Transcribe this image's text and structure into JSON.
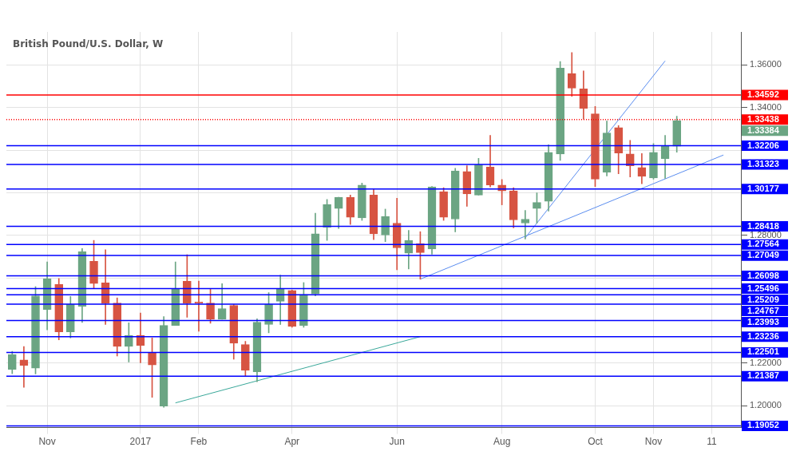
{
  "chart_data": {
    "type": "candlestick",
    "title": "British Pound/U.S. Dollar, W",
    "categories": [
      null,
      null,
      null,
      "Nov",
      null,
      null,
      null,
      null,
      null,
      null,
      null,
      "2017",
      null,
      null,
      null,
      null,
      "Feb",
      null,
      null,
      null,
      null,
      null,
      null,
      null,
      "Apr",
      null,
      null,
      null,
      null,
      null,
      null,
      null,
      null,
      "Jun",
      null,
      null,
      null,
      null,
      null,
      null,
      null,
      null,
      "Aug",
      null,
      null,
      null,
      null,
      null,
      null,
      null,
      "Oct",
      null,
      null,
      null,
      null,
      "Nov",
      null,
      null,
      null,
      null,
      "11",
      null,
      null
    ],
    "ohlc": [
      [
        1.217,
        1.2255,
        1.215,
        1.224
      ],
      [
        1.2215,
        1.2278,
        1.2086,
        1.2189
      ],
      [
        1.2176,
        1.2559,
        1.2149,
        1.2516
      ],
      [
        1.2452,
        1.2675,
        1.2356,
        1.2595
      ],
      [
        1.2569,
        1.2597,
        1.2309,
        1.2347
      ],
      [
        1.2347,
        1.2513,
        1.2318,
        1.2475
      ],
      [
        1.2466,
        1.2738,
        1.2391,
        1.2723
      ],
      [
        1.2678,
        1.2776,
        1.2552,
        1.2573
      ],
      [
        1.2577,
        1.2732,
        1.2381,
        1.2481
      ],
      [
        1.2482,
        1.2506,
        1.2233,
        1.2278
      ],
      [
        1.2278,
        1.2389,
        1.2205,
        1.233
      ],
      [
        1.233,
        1.2435,
        1.2201,
        1.2283
      ],
      [
        1.2249,
        1.2318,
        1.2039,
        1.2191
      ],
      [
        1.1998,
        1.2418,
        1.1992,
        1.2377
      ],
      [
        1.2377,
        1.2675,
        1.2377,
        1.2547
      ],
      [
        1.2584,
        1.2709,
        1.2415,
        1.2481
      ],
      [
        1.2487,
        1.2585,
        1.2349,
        1.2481
      ],
      [
        1.2482,
        1.2547,
        1.2387,
        1.2406
      ],
      [
        1.2406,
        1.2573,
        1.2406,
        1.2456
      ],
      [
        1.2471,
        1.2475,
        1.2218,
        1.2293
      ],
      [
        1.2287,
        1.2302,
        1.2138,
        1.2166
      ],
      [
        1.2159,
        1.2408,
        1.2112,
        1.2392
      ],
      [
        1.2381,
        1.2531,
        1.2342,
        1.2475
      ],
      [
        1.249,
        1.2613,
        1.2381,
        1.2547
      ],
      [
        1.2541,
        1.2543,
        1.2368,
        1.2372
      ],
      [
        1.2377,
        1.2578,
        1.2368,
        1.2522
      ],
      [
        1.2525,
        1.2904,
        1.2515,
        1.2807
      ],
      [
        1.2838,
        1.2968,
        1.2776,
        1.2945
      ],
      [
        1.2926,
        1.2979,
        1.2832,
        1.2979
      ],
      [
        1.2979,
        1.2989,
        1.2851,
        1.2885
      ],
      [
        1.2882,
        1.3045,
        1.287,
        1.3036
      ],
      [
        1.2989,
        1.3018,
        1.278,
        1.2807
      ],
      [
        1.2801,
        1.2923,
        1.277,
        1.2889
      ],
      [
        1.2857,
        1.2974,
        1.2638,
        1.2741
      ],
      [
        1.2716,
        1.2823,
        1.2642,
        1.2776
      ],
      [
        1.2761,
        1.2817,
        1.2594,
        1.2719
      ],
      [
        1.2736,
        1.3029,
        1.2711,
        1.3027
      ],
      [
        1.3005,
        1.3024,
        1.287,
        1.2885
      ],
      [
        1.2876,
        1.3115,
        1.2816,
        1.3102
      ],
      [
        1.31,
        1.3127,
        1.2936,
        1.2994
      ],
      [
        1.2989,
        1.3161,
        1.2989,
        1.3131
      ],
      [
        1.3121,
        1.3269,
        1.3027,
        1.3036
      ],
      [
        1.3036,
        1.3062,
        1.2943,
        1.3008
      ],
      [
        1.3009,
        1.3024,
        1.2835,
        1.2872
      ],
      [
        1.2857,
        1.2917,
        1.2782,
        1.2876
      ],
      [
        1.2926,
        1.2999,
        1.2857,
        1.2954
      ],
      [
        1.296,
        1.3225,
        1.2914,
        1.319
      ],
      [
        1.3182,
        1.3616,
        1.3152,
        1.3585
      ],
      [
        1.356,
        1.3658,
        1.3453,
        1.3491
      ],
      [
        1.3488,
        1.3572,
        1.3346,
        1.3395
      ],
      [
        1.337,
        1.3405,
        1.3029,
        1.3064
      ],
      [
        1.3096,
        1.3337,
        1.3079,
        1.328
      ],
      [
        1.3306,
        1.3315,
        1.3089,
        1.3186
      ],
      [
        1.3182,
        1.3246,
        1.3074,
        1.3126
      ],
      [
        1.3118,
        1.3184,
        1.3042,
        1.3077
      ],
      [
        1.3069,
        1.3231,
        1.3064,
        1.319
      ],
      [
        1.316,
        1.3269,
        1.3067,
        1.3218
      ],
      [
        1.3218,
        1.3359,
        1.319,
        1.33384
      ],
      null,
      null,
      null,
      null,
      null
    ],
    "colors": [
      "#6ba583",
      "#d75442",
      "#6ba583",
      "#6ba583",
      "#d75442",
      "#6ba583",
      "#6ba583",
      "#d75442",
      "#d75442",
      "#d75442",
      "#6ba583",
      "#d75442",
      "#d75442",
      "#6ba583",
      "#6ba583",
      "#d75442",
      "#d75442",
      "#d75442",
      "#6ba583",
      "#d75442",
      "#d75442",
      "#6ba583",
      "#6ba583",
      "#6ba583",
      "#d75442",
      "#6ba583",
      "#6ba583",
      "#6ba583",
      "#6ba583",
      "#d75442",
      "#6ba583",
      "#d75442",
      "#6ba583",
      "#d75442",
      "#6ba583",
      "#d75442",
      "#6ba583",
      "#d75442",
      "#6ba583",
      "#d75442",
      "#6ba583",
      "#d75442",
      "#d75442",
      "#d75442",
      "#6ba583",
      "#6ba583",
      "#6ba583",
      "#6ba583",
      "#d75442",
      "#d75442",
      "#d75442",
      "#6ba583",
      "#d75442",
      "#d75442",
      "#d75442",
      "#6ba583",
      "#6ba583",
      "#6ba583",
      null,
      null,
      null,
      null,
      null
    ],
    "series": [
      {
        "type": "line",
        "color": "#3aa89a",
        "values": [
          null,
          null,
          null,
          null,
          null,
          null,
          null,
          null,
          null,
          null,
          null,
          null,
          null,
          null,
          1.2013,
          null,
          null,
          null,
          null,
          null,
          null,
          null,
          null,
          null,
          null,
          null,
          null,
          null,
          null,
          null,
          null,
          null,
          null,
          null,
          null,
          1.2324,
          null,
          null,
          null,
          null,
          null,
          null,
          null,
          null,
          null,
          null,
          null,
          null,
          null,
          null,
          null,
          null,
          null,
          null,
          null,
          null,
          null,
          null,
          null,
          null,
          null,
          null,
          null
        ]
      },
      {
        "type": "line",
        "color": "#5b8def",
        "values": [
          null,
          null,
          null,
          null,
          null,
          null,
          null,
          null,
          null,
          null,
          null,
          null,
          null,
          null,
          null,
          null,
          null,
          null,
          null,
          null,
          null,
          null,
          null,
          null,
          null,
          null,
          null,
          null,
          null,
          null,
          null,
          null,
          null,
          null,
          null,
          1.2594,
          null,
          null,
          null,
          null,
          null,
          null,
          null,
          null,
          null,
          null,
          null,
          null,
          null,
          null,
          null,
          null,
          null,
          null,
          null,
          null,
          null,
          null,
          null,
          null,
          null,
          1.3177,
          null
        ]
      },
      {
        "type": "line",
        "color": "#5b8def",
        "values": [
          null,
          null,
          null,
          null,
          null,
          null,
          null,
          null,
          null,
          null,
          null,
          null,
          null,
          null,
          null,
          null,
          null,
          null,
          null,
          null,
          null,
          null,
          null,
          null,
          null,
          null,
          null,
          null,
          null,
          null,
          null,
          null,
          null,
          null,
          null,
          null,
          null,
          null,
          null,
          null,
          null,
          null,
          null,
          null,
          1.2788,
          null,
          null,
          null,
          null,
          null,
          null,
          null,
          null,
          null,
          null,
          null,
          1.3619,
          null,
          null,
          null,
          null,
          null,
          null
        ]
      }
    ],
    "ref_lines": [
      {
        "axis": "y",
        "value": 1.34592,
        "label": "1.34592",
        "color": "#ff0000"
      },
      {
        "axis": "y",
        "value": 1.33438,
        "label": "1.33438",
        "color": "#ff0000",
        "line_style": "dotted"
      },
      {
        "axis": "y",
        "value": 1.32206,
        "label": "1.32206",
        "color": "#0000ff"
      },
      {
        "axis": "y",
        "value": 1.31323,
        "label": "1.31323",
        "color": "#0000ff"
      },
      {
        "axis": "y",
        "value": 1.30177,
        "label": "1.30177",
        "color": "#0000ff"
      },
      {
        "axis": "y",
        "value": 1.28418,
        "label": "1.28418",
        "color": "#0000ff"
      },
      {
        "axis": "y",
        "value": 1.27564,
        "label": "1.27564",
        "color": "#0000ff"
      },
      {
        "axis": "y",
        "value": 1.27049,
        "label": "1.27049",
        "color": "#0000ff"
      },
      {
        "axis": "y",
        "value": 1.26098,
        "label": "1.26098",
        "color": "#0000ff"
      },
      {
        "axis": "y",
        "value": 1.25496,
        "label": "1.25496",
        "color": "#0000ff"
      },
      {
        "axis": "y",
        "value": 1.25209,
        "label": "1.25209",
        "color": "#0000ff"
      },
      {
        "axis": "y",
        "value": 1.24767,
        "label": "1.24767",
        "color": "#0000ff"
      },
      {
        "axis": "y",
        "value": 1.23993,
        "label": "1.23993",
        "color": "#0000ff"
      },
      {
        "axis": "y",
        "value": 1.23236,
        "label": "1.23236",
        "color": "#0000ff"
      },
      {
        "axis": "y",
        "value": 1.22501,
        "label": "1.22501",
        "color": "#0000ff"
      },
      {
        "axis": "y",
        "value": 1.21387,
        "label": "1.21387",
        "color": "#0000ff"
      },
      {
        "axis": "y",
        "value": 1.19052,
        "label": "1.19052",
        "color": "#0000ff"
      }
    ],
    "annotations": [
      "1.33384"
    ],
    "ylim": [
      1.1897,
      1.3755
    ],
    "yticks": [
      {
        "value": 1.2,
        "label": "1.20000"
      },
      {
        "value": 1.22,
        "label": "1.22000"
      },
      {
        "value": 1.24,
        "label": null
      },
      {
        "value": 1.26,
        "label": null
      },
      {
        "value": 1.28,
        "label": "1.28000"
      },
      {
        "value": 1.3,
        "label": null
      },
      {
        "value": 1.32,
        "label": null
      },
      {
        "value": 1.34,
        "label": "1.34000"
      },
      {
        "value": 1.36,
        "label": "1.36000"
      }
    ],
    "grid": true,
    "legend": false,
    "marker": "none"
  }
}
